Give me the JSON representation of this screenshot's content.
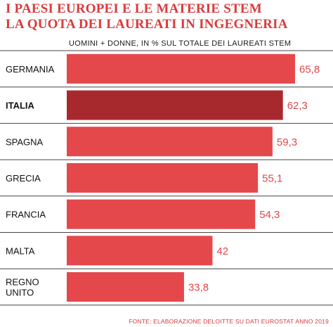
{
  "title_line1": "I PAESI EUROPEI E LE MATERIE STEM",
  "title_line2": "LA QUOTA DEI LAUREATI IN INGEGNERIA",
  "subtitle": "UOMINI + DONNE, IN % SUL TOTALE DEI LAUREATI STEM",
  "source": "FONTE: ELABORAZIONE DELOITTE SU DATI EUROSTAT ANNO 2019",
  "colors": {
    "bar": "#e5484b",
    "highlight": "#a8292d",
    "separator": "#444444",
    "value_text": "#e0474a"
  },
  "chart_data": {
    "type": "bar",
    "orientation": "horizontal",
    "categories": [
      [
        "GERMANIA"
      ],
      [
        "ITALIA"
      ],
      [
        "SPAGNA"
      ],
      [
        "GRECIA"
      ],
      [
        "FRANCIA"
      ],
      [
        "MALTA"
      ],
      [
        "REGNO",
        "UNITO"
      ]
    ],
    "values": [
      65.8,
      62.3,
      59.3,
      55.1,
      54.3,
      42,
      33.8
    ],
    "value_labels": [
      "65,8",
      "62,3",
      "59,3",
      "55,1",
      "54,3",
      "42",
      "33,8"
    ],
    "highlight_index": 1,
    "xlim": [
      0,
      65.8
    ],
    "grid": false,
    "legend": "none"
  }
}
